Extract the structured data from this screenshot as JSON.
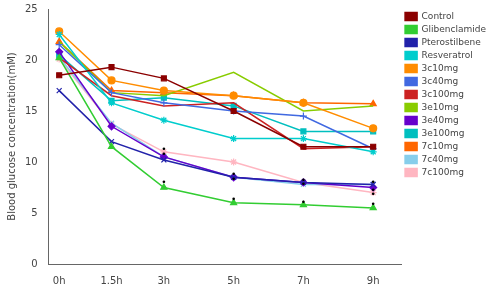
{
  "chart_data": {
    "type": "line",
    "ylabel": "Blood glucose concentration(mM)",
    "x": [
      0,
      1.5,
      3,
      5,
      7,
      9
    ],
    "xlim": [
      -0.3,
      9.8
    ],
    "xticks": [
      {
        "value": 0,
        "label": "0h"
      },
      {
        "value": 1.5,
        "label": "1.5h"
      },
      {
        "value": 3,
        "label": "3h"
      },
      {
        "value": 5,
        "label": "5h"
      },
      {
        "value": 7,
        "label": "7h"
      },
      {
        "value": 9,
        "label": "9h"
      }
    ],
    "ylim": [
      0,
      25
    ],
    "yticks": [
      0,
      5,
      10,
      15,
      20,
      25
    ],
    "grid": false,
    "legend": "right",
    "series": [
      {
        "name": "Control",
        "color": "#8B0000",
        "marker": "square",
        "values": [
          18.5,
          19.3,
          18.2,
          15.0,
          11.5,
          11.5
        ]
      },
      {
        "name": "Glibenclamide",
        "color": "#32CD32",
        "marker": "triangle",
        "values": [
          20.2,
          11.5,
          7.5,
          6.0,
          5.8,
          5.5
        ]
      },
      {
        "name": "Pterostilbene",
        "color": "#2222AA",
        "marker": "x",
        "values": [
          17.0,
          12.0,
          10.2,
          8.5,
          8.0,
          7.8
        ]
      },
      {
        "name": "Resveratrol",
        "color": "#00CDCD",
        "marker": "star",
        "values": [
          22.5,
          15.8,
          14.1,
          12.3,
          12.3,
          11.0
        ]
      },
      {
        "name": "3c10mg",
        "color": "#FF8C00",
        "marker": "circle",
        "values": [
          22.8,
          18.0,
          17.0,
          16.5,
          15.8,
          13.3
        ]
      },
      {
        "name": "3c40mg",
        "color": "#4169E1",
        "marker": "plus",
        "values": [
          21.5,
          16.8,
          15.8,
          15.0,
          14.5,
          11.3
        ]
      },
      {
        "name": "3c100mg",
        "color": "#CC2222",
        "marker": "none",
        "values": [
          20.2,
          16.5,
          15.5,
          15.8,
          11.3,
          11.5
        ]
      },
      {
        "name": "3e10mg",
        "color": "#88CC00",
        "marker": "none",
        "values": [
          21.8,
          16.8,
          16.5,
          18.8,
          15.0,
          15.5
        ]
      },
      {
        "name": "3e40mg",
        "color": "#6600CC",
        "marker": "diamond",
        "values": [
          20.8,
          13.5,
          10.5,
          8.5,
          8.0,
          7.5
        ]
      },
      {
        "name": "3e100mg",
        "color": "#00BFBF",
        "marker": "square",
        "values": [
          20.5,
          16.0,
          16.3,
          15.5,
          13.0,
          13.0
        ]
      },
      {
        "name": "7c10mg",
        "color": "#FF6600",
        "marker": "triangle",
        "values": [
          21.8,
          17.0,
          16.8,
          16.5,
          15.8,
          15.7
        ]
      },
      {
        "name": "7c40mg",
        "color": "#87CEEB",
        "marker": "x",
        "values": [
          20.3,
          13.8,
          10.5,
          8.5,
          7.8,
          7.8
        ]
      },
      {
        "name": "7c100mg",
        "color": "#FFB6C1",
        "marker": "star",
        "values": [
          20.1,
          13.7,
          11.0,
          10.0,
          8.0,
          7.0
        ]
      }
    ],
    "annotations": [
      {
        "x": 3,
        "y": 8.0,
        "text": "•"
      },
      {
        "x": 5,
        "y": 6.3,
        "text": "•"
      },
      {
        "x": 7,
        "y": 6.0,
        "text": "•"
      },
      {
        "x": 9,
        "y": 5.8,
        "text": "•"
      },
      {
        "x": 3,
        "y": 10.7,
        "text": "•"
      },
      {
        "x": 3,
        "y": 11.2,
        "text": "•"
      },
      {
        "x": 5,
        "y": 8.8,
        "text": "•"
      },
      {
        "x": 5,
        "y": 8.3,
        "text": "•"
      },
      {
        "x": 7,
        "y": 8.2,
        "text": "•"
      },
      {
        "x": 7,
        "y": 7.8,
        "text": "•"
      },
      {
        "x": 9,
        "y": 8.0,
        "text": "•"
      },
      {
        "x": 9,
        "y": 7.2,
        "text": "•"
      },
      {
        "x": 9,
        "y": 6.8,
        "text": "•"
      }
    ]
  }
}
